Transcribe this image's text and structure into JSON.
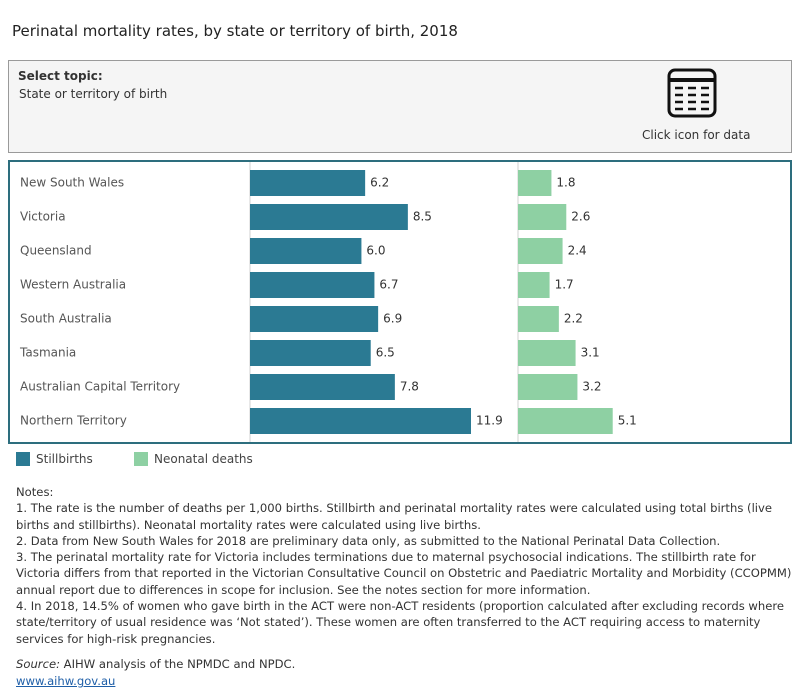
{
  "chart_data": {
    "type": "bar",
    "orientation": "horizontal",
    "title": "Perinatal mortality rates, by state or territory of birth, 2018",
    "categories": [
      "New South Wales",
      "Victoria",
      "Queensland",
      "Western Australia",
      "South Australia",
      "Tasmania",
      "Australian Capital Territory",
      "Northern Territory"
    ],
    "series": [
      {
        "name": "Stillbirths",
        "color": "#2b7a93",
        "values": [
          6.2,
          8.5,
          6,
          6.7,
          6.9,
          6.5,
          7.8,
          11.9
        ],
        "value_labels": [
          "6.2",
          "8.5",
          "6.0",
          "6.7",
          "6.9",
          "6.5",
          "7.8",
          "11.9"
        ]
      },
      {
        "name": "Neonatal deaths",
        "color": "#8ed0a3",
        "values": [
          1.8,
          2.6,
          2.4,
          1.7,
          2.2,
          3.1,
          3.2,
          5.1
        ],
        "value_labels": [
          "1.8",
          "2.6",
          "2.4",
          "1.7",
          "2.2",
          "3.1",
          "3.2",
          "5.1"
        ]
      }
    ],
    "xlim": [
      0,
      14
    ]
  },
  "topic": {
    "label": "Select topic:",
    "value": "State or territory of birth",
    "data_hint": "Click icon for data"
  },
  "notes": {
    "heading": "Notes:",
    "items": [
      "1. The rate is the number of deaths per 1,000 births. Stillbirth and perinatal mortality rates were calculated using total births (live births and stillbirths). Neonatal mortality rates were calculated using live births.",
      "2. Data from New South Wales for 2018 are preliminary data only, as submitted to the National Perinatal Data Collection.",
      "3. The perinatal mortality rate for Victoria includes terminations due to maternal psychosocial indications. The stillbirth rate for Victoria differs from that reported in the Victorian Consultative Council on Obstetric and Paediatric Mortality and Morbidity (CCOPMM) annual report due to differences in scope for inclusion. See the notes section for more information.",
      "4. In 2018, 14.5% of women who gave birth in the ACT were non-ACT residents (proportion calculated after excluding records where state/territory of usual residence was ‘Not stated’). These women are often transferred to the ACT requiring access to maternity services for high-risk pregnancies."
    ]
  },
  "source": {
    "label": "Source:",
    "text": " AIHW analysis of the NPMDC and NPDC.",
    "link": "www.aihw.gov.au"
  }
}
